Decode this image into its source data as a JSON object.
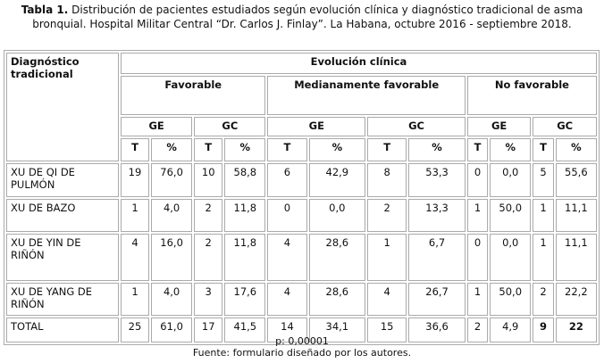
{
  "caption": {
    "label": "Tabla 1.",
    "text": " Distribución de pacientes estudiados según evolución clínica y diagnóstico tradicional de asma bronquial. Hospital Militar Central “Dr. Carlos J. Finlay”. La Habana, octubre 2016 - septiembre 2018."
  },
  "table": {
    "row_header": "Diagnóstico tradicional",
    "group_header": "Evolución clínica",
    "groups": [
      "Favorable",
      "Medianamente favorable",
      "No favorable"
    ],
    "subgroups": [
      "GE",
      "GC",
      "GE",
      "GC",
      "GE",
      "GC"
    ],
    "cols": [
      "T",
      "%",
      "T",
      "%",
      "T",
      "%",
      "T",
      "%",
      "T",
      "%",
      "T",
      "%"
    ],
    "rows": [
      {
        "label": "XU DE QI DE PULMÓN",
        "values": [
          "19",
          "76,0",
          "10",
          "58,8",
          "6",
          "42,9",
          "8",
          "53,3",
          "0",
          "0,0",
          "5",
          "55,6"
        ]
      },
      {
        "label": "XU DE BAZO",
        "values": [
          "1",
          "4,0",
          "2",
          "11,8",
          "0",
          "0,0",
          "2",
          "13,3",
          "1",
          "50,0",
          "1",
          "11,1"
        ]
      },
      {
        "label": "XU DE YIN DE RIÑÓN",
        "values": [
          "4",
          "16,0",
          "2",
          "11,8",
          "4",
          "28,6",
          "1",
          "6,7",
          "0",
          "0,0",
          "1",
          "11,1"
        ]
      },
      {
        "label": "XU DE YANG DE RIÑÓN",
        "values": [
          "1",
          "4,0",
          "3",
          "17,6",
          "4",
          "28,6",
          "4",
          "26,7",
          "1",
          "50,0",
          "2",
          "22,2"
        ]
      },
      {
        "label": "TOTAL",
        "values": [
          "25",
          "61,0",
          "17",
          "41,5",
          "14",
          "34,1",
          "15",
          "36,6",
          "2",
          "4,9",
          "9",
          "22"
        ]
      }
    ]
  },
  "footer": {
    "p_value": "p: 0,00001",
    "source": "Fuente: formulario diseñado por los autores."
  }
}
